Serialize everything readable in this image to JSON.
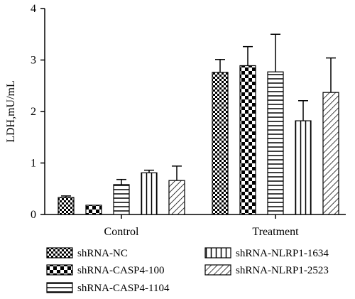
{
  "chart_data": {
    "type": "bar",
    "ylabel": "LDH,mU/mL",
    "xlabel": "",
    "ylim": [
      0,
      4
    ],
    "yticks": [
      0,
      1,
      2,
      3,
      4
    ],
    "categories": [
      "Control",
      "Treatment"
    ],
    "series": [
      {
        "name": "shRNA-NC",
        "values": [
          0.33,
          2.76
        ],
        "errors": [
          0.03,
          0.25
        ],
        "pattern": "fine-checker"
      },
      {
        "name": "shRNA-CASP4-100",
        "values": [
          0.18,
          2.89
        ],
        "errors": [
          0.0,
          0.37
        ],
        "pattern": "coarse-checker"
      },
      {
        "name": "shRNA-CASP4-1104",
        "values": [
          0.58,
          2.77
        ],
        "errors": [
          0.1,
          0.73
        ],
        "pattern": "horizontal-lines"
      },
      {
        "name": "shRNA-NLRP1-1634",
        "values": [
          0.81,
          1.82
        ],
        "errors": [
          0.05,
          0.39
        ],
        "pattern": "vertical-lines"
      },
      {
        "name": "shRNA-NLRP1-2523",
        "values": [
          0.66,
          2.37
        ],
        "errors": [
          0.28,
          0.67
        ],
        "pattern": "diagonal-lines"
      }
    ],
    "legend_position": "bottom",
    "grid": false
  }
}
